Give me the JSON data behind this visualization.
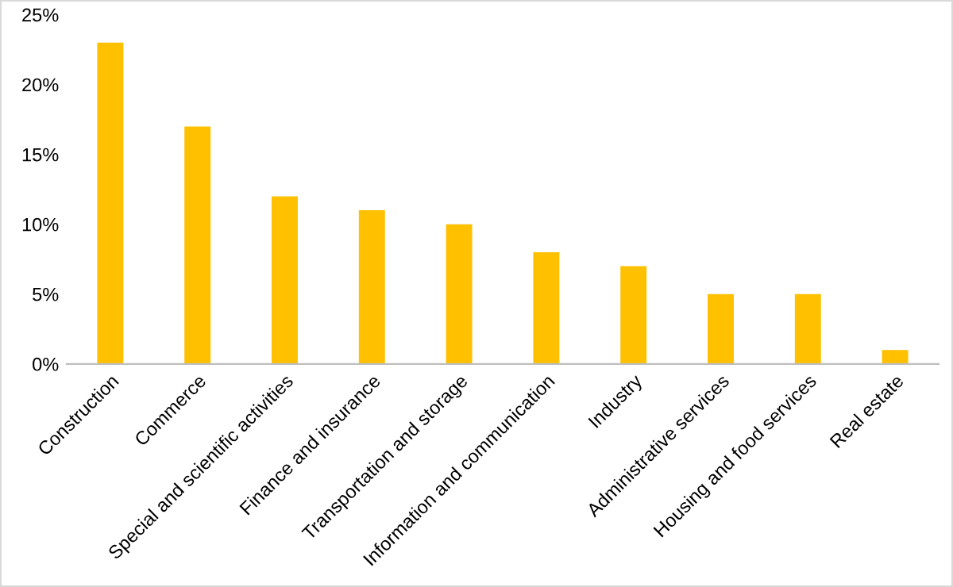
{
  "chart_data": {
    "type": "bar",
    "categories": [
      "Construction",
      "Commerce",
      "Special and scientific activities",
      "Finance and insurance",
      "Transportation and storage",
      "Information and communication",
      "Industry",
      "Administrative services",
      "Housing and food services",
      "Real estate"
    ],
    "values": [
      23,
      17,
      12,
      11,
      10,
      8,
      7,
      5,
      5,
      1
    ],
    "color": "#ffc000",
    "ylim": [
      0,
      25
    ],
    "yticks": [
      {
        "value": 0,
        "label": "0%"
      },
      {
        "value": 5,
        "label": "5%"
      },
      {
        "value": 10,
        "label": "10%"
      },
      {
        "value": 15,
        "label": "15%"
      },
      {
        "value": 20,
        "label": "20%"
      },
      {
        "value": 25,
        "label": "25%"
      }
    ],
    "grid": false,
    "legend": false
  }
}
